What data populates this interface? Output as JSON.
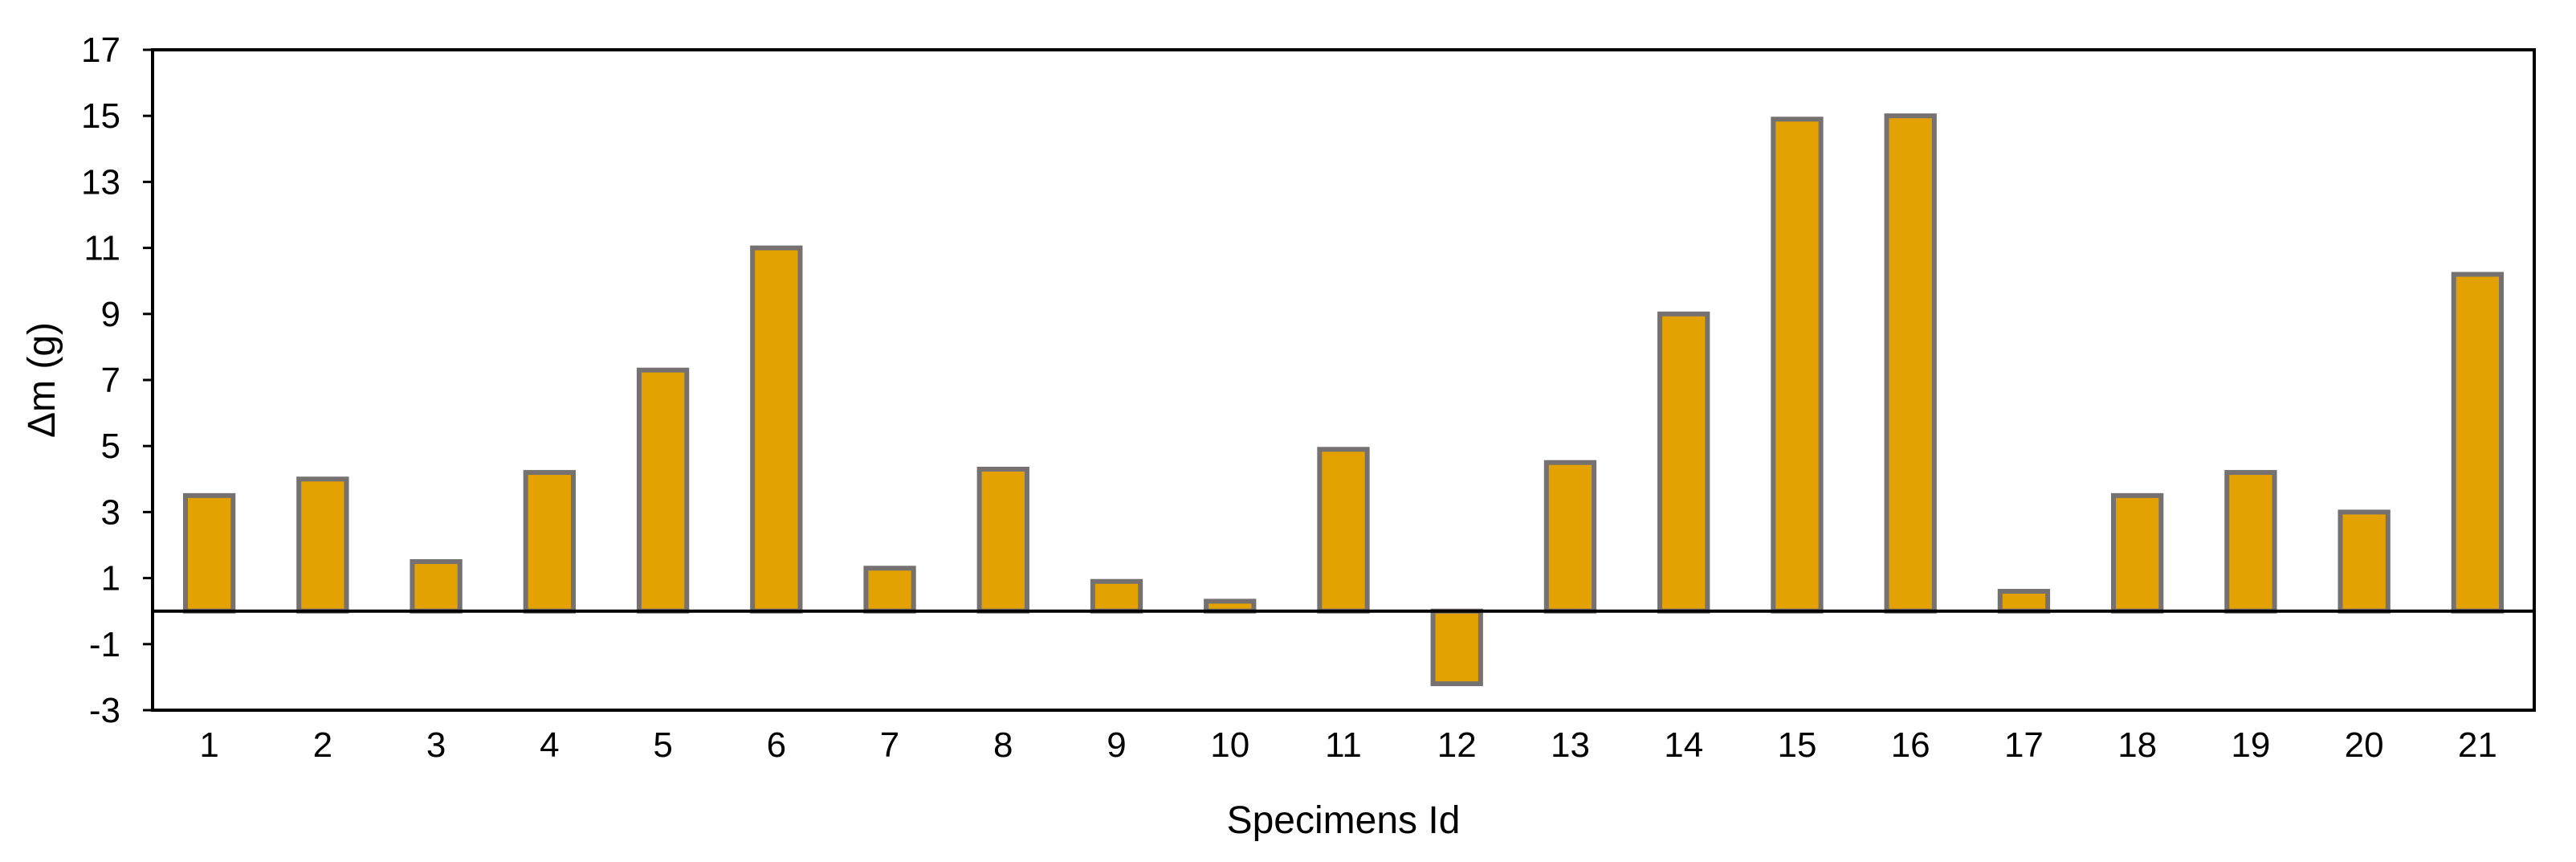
{
  "chart_data": {
    "type": "bar",
    "title": "",
    "xlabel": "Specimens Id",
    "ylabel": "Δm (g)",
    "ylim": [
      -3,
      17
    ],
    "yticks": [
      -3,
      -1,
      1,
      3,
      5,
      7,
      9,
      11,
      13,
      15,
      17
    ],
    "grid": false,
    "legend": "none",
    "categories": [
      "1",
      "2",
      "3",
      "4",
      "5",
      "6",
      "7",
      "8",
      "9",
      "10",
      "11",
      "12",
      "13",
      "14",
      "15",
      "16",
      "17",
      "18",
      "19",
      "20",
      "21"
    ],
    "values": [
      3.5,
      4.0,
      1.5,
      4.2,
      7.3,
      11.0,
      1.3,
      4.3,
      0.9,
      0.3,
      4.9,
      -2.2,
      4.5,
      9.0,
      14.9,
      15.0,
      0.6,
      3.5,
      4.2,
      3.0,
      10.2
    ],
    "colors": {
      "bar_fill": "#E3A102",
      "bar_stroke": "#767171",
      "axis": "#000000",
      "zero_line": "#000000"
    }
  }
}
